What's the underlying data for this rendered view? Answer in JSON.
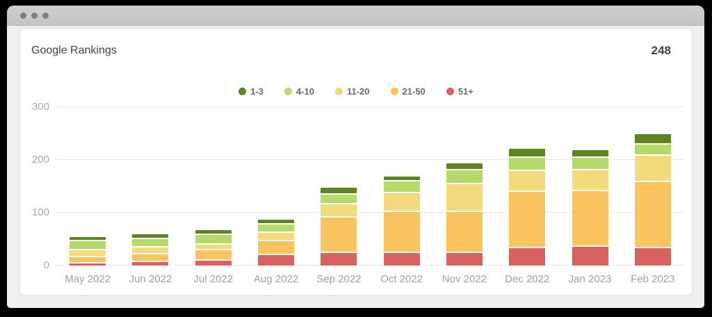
{
  "window": {
    "control_dots": 3
  },
  "header": {
    "title": "Google Rankings",
    "total": "248"
  },
  "colors": {
    "page_bg": "#000000",
    "titlebar": "#c9c9c9",
    "titlebar_dot": "#7d7d7d",
    "window_bg": "#edeff1",
    "card_bg": "#ffffff",
    "card_border": "#e3e3e3",
    "grid_line": "#ebebeb",
    "axis_text": "#a2a2a2",
    "legend_text": "#6b6b6b",
    "title_text": "#3f4347"
  },
  "chart_data": {
    "type": "bar",
    "stacked": true,
    "title": "Google Rankings",
    "total_shown": 248,
    "categories": [
      "May 2022",
      "Jun 2022",
      "Jul 2022",
      "Aug 2022",
      "Sep 2022",
      "Oct 2022",
      "Nov 2022",
      "Dec 2022",
      "Jan 2023",
      "Feb 2023"
    ],
    "series": [
      {
        "name": "1-3",
        "color": "#5f8222",
        "values": [
          6,
          6,
          6,
          7,
          10,
          7,
          10,
          15,
          13,
          16
        ]
      },
      {
        "name": "4-10",
        "color": "#b6d96c",
        "values": [
          16,
          16,
          19,
          16,
          19,
          22,
          26,
          24,
          23,
          21
        ]
      },
      {
        "name": "11-20",
        "color": "#f2da7d",
        "values": [
          13,
          13,
          10,
          15,
          24,
          36,
          53,
          40,
          40,
          50
        ]
      },
      {
        "name": "21-50",
        "color": "#f9c360",
        "values": [
          13,
          15,
          20,
          27,
          68,
          77,
          77,
          106,
          105,
          126
        ]
      },
      {
        "name": "51+",
        "color": "#d76260",
        "values": [
          6,
          9,
          12,
          22,
          26,
          27,
          27,
          36,
          38,
          35
        ]
      }
    ],
    "totals": [
      54,
      59,
      67,
      87,
      147,
      169,
      193,
      221,
      219,
      248
    ],
    "ylim": [
      0,
      300
    ],
    "yticks": [
      0,
      100,
      200,
      300
    ],
    "grid": true,
    "legend_position": "top-center"
  }
}
